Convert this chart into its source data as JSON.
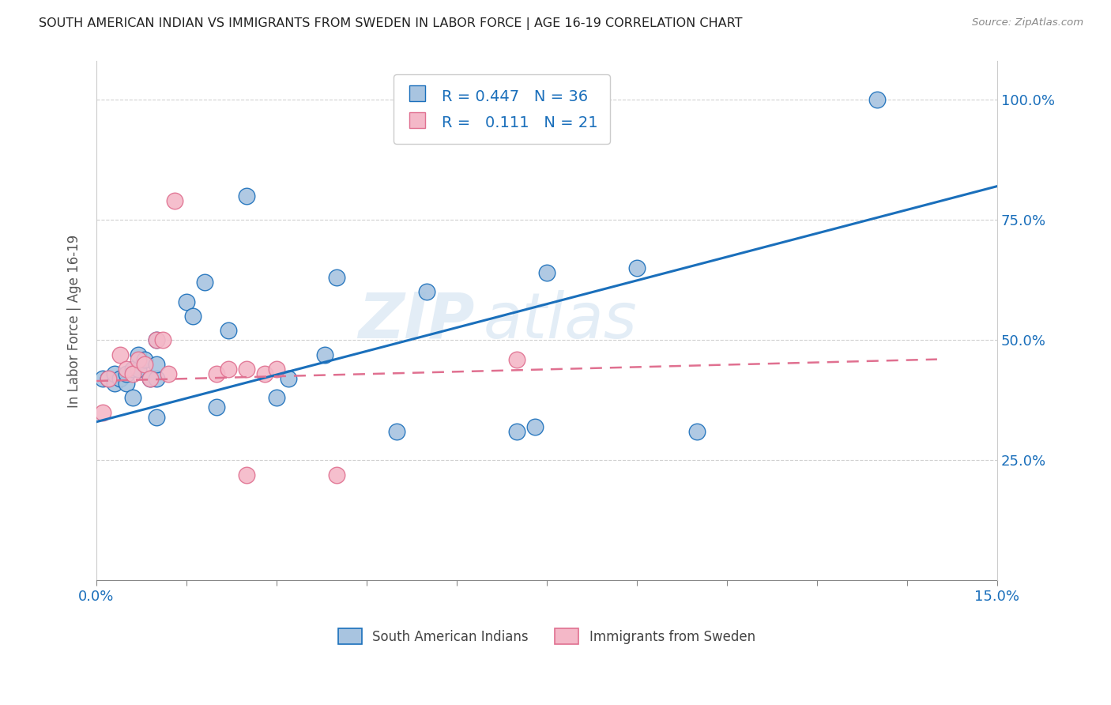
{
  "title": "SOUTH AMERICAN INDIAN VS IMMIGRANTS FROM SWEDEN IN LABOR FORCE | AGE 16-19 CORRELATION CHART",
  "source": "Source: ZipAtlas.com",
  "ylabel_label": "In Labor Force | Age 16-19",
  "xlim": [
    0.0,
    0.15
  ],
  "ylim": [
    0.0,
    1.08
  ],
  "xticks": [
    0.0,
    0.015,
    0.03,
    0.045,
    0.06,
    0.075,
    0.09,
    0.105,
    0.12,
    0.135,
    0.15
  ],
  "ytick_positions": [
    0.0,
    0.25,
    0.5,
    0.75,
    1.0
  ],
  "ytick_labels": [
    "",
    "25.0%",
    "50.0%",
    "75.0%",
    "100.0%"
  ],
  "blue_R": "0.447",
  "blue_N": "36",
  "pink_R": "0.111",
  "pink_N": "21",
  "blue_color": "#a8c4e0",
  "blue_line_color": "#1a6fbb",
  "pink_color": "#f4b8c8",
  "pink_line_color": "#e07090",
  "watermark_zip": "ZIP",
  "watermark_atlas": "atlas",
  "blue_points_x": [
    0.001,
    0.002,
    0.003,
    0.003,
    0.004,
    0.005,
    0.005,
    0.006,
    0.006,
    0.007,
    0.007,
    0.008,
    0.009,
    0.01,
    0.01,
    0.01,
    0.01,
    0.015,
    0.016,
    0.018,
    0.02,
    0.022,
    0.025,
    0.03,
    0.032,
    0.038,
    0.04,
    0.05,
    0.055,
    0.07,
    0.073,
    0.075,
    0.09,
    0.1,
    0.13
  ],
  "blue_points_y": [
    0.42,
    0.42,
    0.41,
    0.43,
    0.42,
    0.41,
    0.43,
    0.38,
    0.44,
    0.44,
    0.47,
    0.46,
    0.42,
    0.34,
    0.42,
    0.45,
    0.5,
    0.58,
    0.55,
    0.62,
    0.36,
    0.52,
    0.8,
    0.38,
    0.42,
    0.47,
    0.63,
    0.31,
    0.6,
    0.31,
    0.32,
    0.64,
    0.65,
    0.31,
    1.0
  ],
  "pink_points_x": [
    0.001,
    0.002,
    0.004,
    0.005,
    0.006,
    0.007,
    0.008,
    0.009,
    0.01,
    0.011,
    0.012,
    0.013,
    0.02,
    0.022,
    0.025,
    0.025,
    0.028,
    0.03,
    0.04,
    0.07
  ],
  "pink_points_y": [
    0.35,
    0.42,
    0.47,
    0.44,
    0.43,
    0.46,
    0.45,
    0.42,
    0.5,
    0.5,
    0.43,
    0.79,
    0.43,
    0.44,
    0.44,
    0.22,
    0.43,
    0.44,
    0.22,
    0.46
  ],
  "blue_trend_x": [
    0.0,
    0.15
  ],
  "blue_trend_y": [
    0.33,
    0.82
  ],
  "pink_trend_x": [
    0.0,
    0.14
  ],
  "pink_trend_y": [
    0.415,
    0.46
  ],
  "legend_label_blue": "South American Indians",
  "legend_label_pink": "Immigrants from Sweden"
}
